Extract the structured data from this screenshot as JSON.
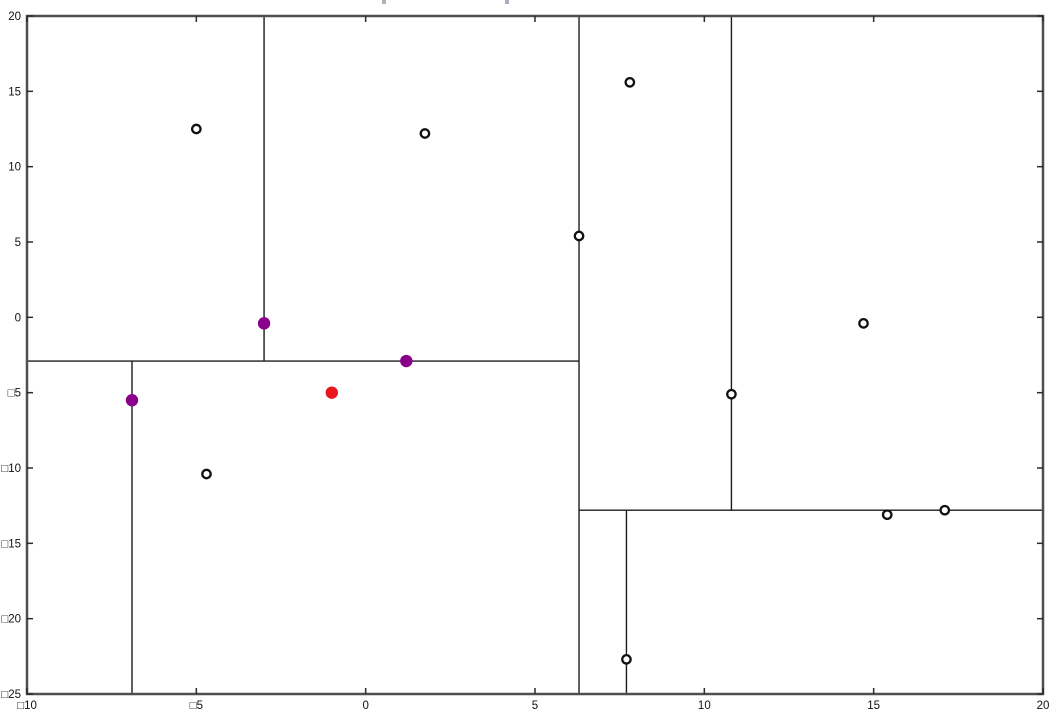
{
  "figure": {
    "background": "#ffffff",
    "note": "title clipped off top edge; only two descender fragments visible"
  },
  "chart_data": {
    "type": "scatter",
    "title": "",
    "xlabel": "",
    "ylabel": "",
    "grid": false,
    "legend": "none",
    "xlim": [
      -10,
      20
    ],
    "ylim": [
      -25,
      20
    ],
    "x_ticks": [
      {
        "value": -10,
        "label": "□10"
      },
      {
        "value": -5,
        "label": "□5"
      },
      {
        "value": 0,
        "label": "0"
      },
      {
        "value": 5,
        "label": "5"
      },
      {
        "value": 10,
        "label": "10"
      },
      {
        "value": 15,
        "label": "15"
      },
      {
        "value": 20,
        "label": "20"
      }
    ],
    "y_ticks": [
      {
        "value": 20,
        "label": "20"
      },
      {
        "value": 15,
        "label": "15"
      },
      {
        "value": 10,
        "label": "10"
      },
      {
        "value": 5,
        "label": "5"
      },
      {
        "value": 0,
        "label": "0"
      },
      {
        "value": -5,
        "label": "□5"
      },
      {
        "value": -10,
        "label": "□10"
      },
      {
        "value": -15,
        "label": "□15"
      },
      {
        "value": -20,
        "label": "□20"
      },
      {
        "value": -25,
        "label": "□25"
      }
    ],
    "series": [
      {
        "name": "dataset-points",
        "marker": "open-circle",
        "stroke": "#111111",
        "fill": "#ffffff",
        "points": [
          [
            -5.0,
            12.5
          ],
          [
            1.75,
            12.2
          ],
          [
            7.8,
            15.6
          ],
          [
            6.3,
            5.4
          ],
          [
            14.7,
            -0.4
          ],
          [
            10.8,
            -5.1
          ],
          [
            -4.7,
            -10.4
          ],
          [
            15.4,
            -13.1
          ],
          [
            17.1,
            -12.8
          ],
          [
            7.7,
            -22.7
          ]
        ]
      },
      {
        "name": "nearest-neighbors",
        "marker": "filled-circle",
        "stroke": "none",
        "fill": "#8b008b",
        "points": [
          [
            -3.0,
            -0.4
          ],
          [
            1.2,
            -2.9
          ],
          [
            -6.9,
            -5.5
          ]
        ]
      },
      {
        "name": "query-point",
        "marker": "filled-circle",
        "stroke": "none",
        "fill": "#e8161c",
        "points": [
          [
            -1.0,
            -5.0
          ]
        ]
      }
    ],
    "partitions": [
      {
        "orientation": "vertical",
        "x": 6.3,
        "y_from": -25,
        "y_to": 20
      },
      {
        "orientation": "horizontal",
        "y": -2.9,
        "x_from": -10,
        "x_to": 6.3
      },
      {
        "orientation": "vertical",
        "x": -3.0,
        "y_from": -2.9,
        "y_to": 20
      },
      {
        "orientation": "vertical",
        "x": -6.9,
        "y_from": -25,
        "y_to": -2.9
      },
      {
        "orientation": "horizontal",
        "y": -12.8,
        "x_from": 6.3,
        "x_to": 20
      },
      {
        "orientation": "vertical",
        "x": 10.8,
        "y_from": -12.8,
        "y_to": 20
      },
      {
        "orientation": "vertical",
        "x": 7.7,
        "y_from": -25,
        "y_to": -12.8
      }
    ],
    "colors": {
      "partition_line": "#1c1c1c",
      "spine": "#4f4f52",
      "tick": "#2b2b2b",
      "neighbor": "#8b008b",
      "query": "#e8161c",
      "point_ring": "#111111"
    }
  }
}
